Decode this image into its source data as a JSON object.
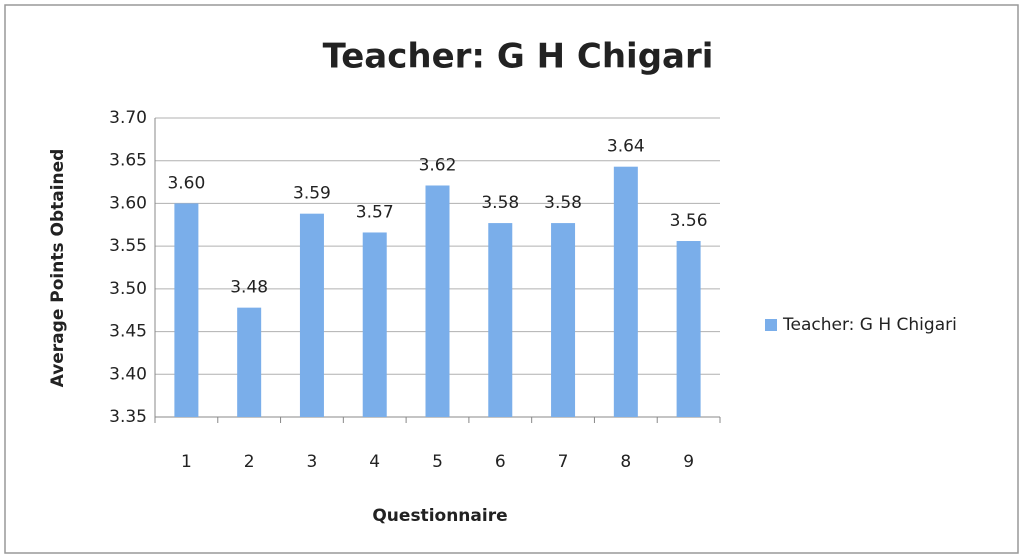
{
  "chart_data": {
    "type": "bar",
    "title": "Teacher: G H Chigari",
    "x_label": "Questionnaire",
    "y_label": "Average Points Obtained",
    "categories": [
      "1",
      "2",
      "3",
      "4",
      "5",
      "6",
      "7",
      "8",
      "9"
    ],
    "series": [
      {
        "name": "Teacher: G H Chigari",
        "color": "#7aaeea",
        "values": [
          3.6,
          3.478,
          3.588,
          3.566,
          3.621,
          3.577,
          3.577,
          3.643,
          3.556
        ],
        "value_labels": [
          "3.60",
          "3.48",
          "3.59",
          "3.57",
          "3.62",
          "3.58",
          "3.58",
          "3.64",
          "3.56"
        ]
      }
    ],
    "ylim": [
      3.35,
      3.7
    ],
    "yticks": [
      {
        "value": 3.35,
        "label": "3.35"
      },
      {
        "value": 3.4,
        "label": "3.40"
      },
      {
        "value": 3.45,
        "label": "3.45"
      },
      {
        "value": 3.5,
        "label": "3.50"
      },
      {
        "value": 3.55,
        "label": "3.55"
      },
      {
        "value": 3.6,
        "label": "3.60"
      },
      {
        "value": 3.65,
        "label": "3.65"
      },
      {
        "value": 3.7,
        "label": "3.70"
      }
    ],
    "grid": true,
    "legend": "right"
  }
}
